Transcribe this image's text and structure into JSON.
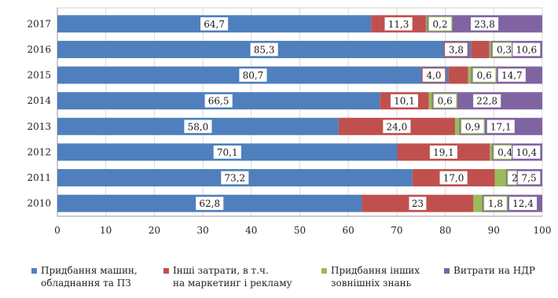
{
  "chart_data": {
    "type": "bar",
    "orientation": "horizontal",
    "stacked": true,
    "categories": [
      "2017",
      "2016",
      "2015",
      "2014",
      "2013",
      "2012",
      "2011",
      "2010"
    ],
    "series": [
      {
        "name": "Придбання машин, обладнання та ПЗ",
        "color": "#4f7fbd",
        "values": [
          64.7,
          85.3,
          80.7,
          66.5,
          58.0,
          70.1,
          73.2,
          62.8
        ],
        "labels": [
          "64,7",
          "85,3",
          "80,7",
          "66,5",
          "58,0",
          "70,1",
          "73,2",
          "62,8"
        ]
      },
      {
        "name": "Інші затрати, в т.ч. на маркетинг і рекламу",
        "color": "#c0504d",
        "values": [
          11.3,
          3.8,
          4.0,
          10.1,
          24.0,
          19.1,
          17.0,
          23.0
        ],
        "labels": [
          "11,3",
          "3,8",
          "4,0",
          "10,1",
          "24,0",
          "19,1",
          "17,0",
          "23"
        ]
      },
      {
        "name": "Придбання інших зовнішніх знань",
        "color": "#9bbb59",
        "values": [
          0.2,
          0.3,
          0.6,
          0.6,
          0.9,
          0.4,
          2.3,
          1.8
        ],
        "labels": [
          "0,2",
          "0,3",
          "0,6",
          "0,6",
          "0,9",
          "0,4",
          "2,3",
          "1,8"
        ]
      },
      {
        "name": "Витрати на НДР",
        "color": "#8064a2",
        "values": [
          23.8,
          10.6,
          14.7,
          22.8,
          17.1,
          10.4,
          7.5,
          12.4
        ],
        "labels": [
          "23,8",
          "10,6",
          "14,7",
          "22,8",
          "17,1",
          "10,4",
          "7,5",
          "12,4"
        ]
      }
    ],
    "xlim": [
      0,
      100
    ],
    "xticks": [
      0,
      10,
      20,
      30,
      40,
      50,
      60,
      70,
      80,
      90,
      100
    ],
    "grid": true,
    "legend_position": "bottom",
    "legend_items": [
      "Придбання машин,\nобладнання та ПЗ",
      "Інші затрати, в т.ч.\nна маркетинг і рекламу",
      "Придбання інших\nзовнішніх знань",
      "Витрати на НДР"
    ],
    "title": "",
    "xlabel": "",
    "ylabel": ""
  }
}
